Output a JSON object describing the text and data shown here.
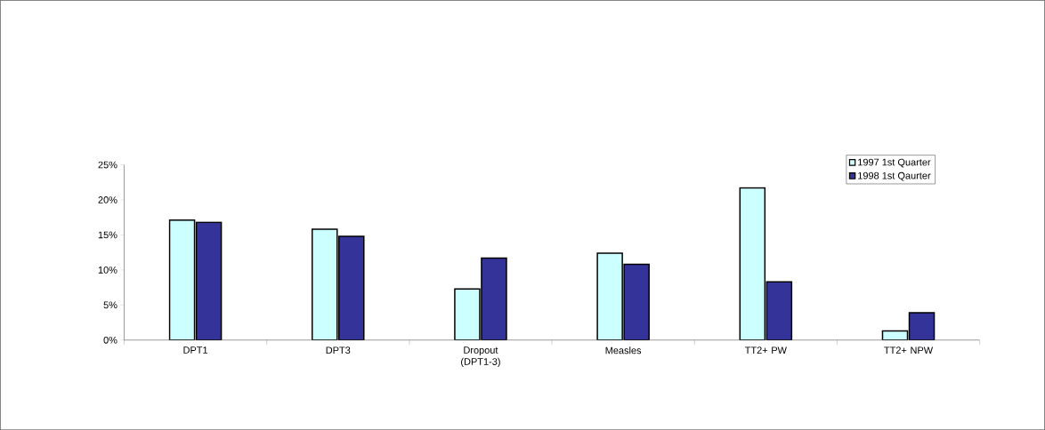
{
  "chart_data": {
    "type": "bar",
    "categories": [
      "DPT1",
      "DPT3",
      "Dropout (DPT1-3)",
      "Measles",
      "TT2+ PW",
      "TT2+ NPW"
    ],
    "series": [
      {
        "name": "1997 1st Quarter",
        "color": "#ccffff",
        "values": [
          17.1,
          15.8,
          7.3,
          12.4,
          21.7,
          1.3
        ]
      },
      {
        "name": "1998 1st Qaurter",
        "color": "#333399",
        "values": [
          16.8,
          14.8,
          11.7,
          10.8,
          8.3,
          3.9
        ]
      }
    ],
    "ylim": [
      0,
      25
    ],
    "yticks": [
      {
        "value": 0,
        "label": "0%"
      },
      {
        "value": 5,
        "label": "5%"
      },
      {
        "value": 10,
        "label": "10%"
      },
      {
        "value": 15,
        "label": "15%"
      },
      {
        "value": 20,
        "label": "20%"
      },
      {
        "value": 25,
        "label": "25%"
      }
    ],
    "grid": false,
    "legend": "right"
  }
}
